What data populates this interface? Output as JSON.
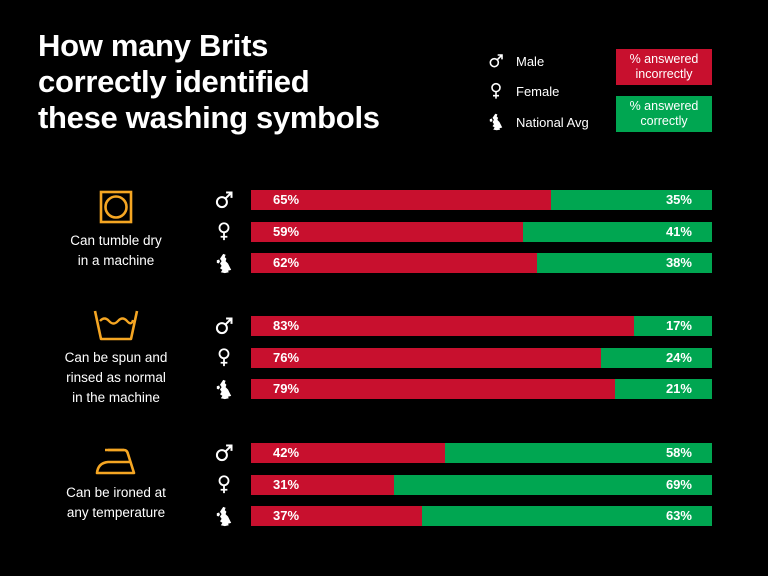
{
  "title_lines": [
    "How many Brits",
    "correctly identified",
    "these washing symbols"
  ],
  "legend": {
    "male": "Male",
    "female": "Female",
    "national": "National Avg",
    "incorrect_lines": [
      "% answered",
      "incorrectly"
    ],
    "correct_lines": [
      "% answered",
      "correctly"
    ]
  },
  "colors": {
    "incorrect": "#c8102e",
    "correct": "#00a651",
    "symbol": "#f5a623",
    "background": "#000000",
    "text": "#ffffff"
  },
  "chart_data": {
    "type": "bar",
    "stacked": true,
    "orientation": "horizontal",
    "title": "How many Brits correctly identified these washing symbols",
    "xlim": [
      0,
      100
    ],
    "series_names": [
      "% answered incorrectly",
      "% answered correctly"
    ],
    "groups": [
      {
        "symbol": "tumble-dry-symbol-icon",
        "label_lines": [
          "Can tumble dry",
          "in a machine"
        ],
        "rows": [
          {
            "gender": "male",
            "incorrect": 65,
            "correct": 35,
            "incorrect_label": "65%",
            "correct_label": "35%"
          },
          {
            "gender": "female",
            "incorrect": 59,
            "correct": 41,
            "incorrect_label": "59%",
            "correct_label": "41%"
          },
          {
            "gender": "national",
            "incorrect": 62,
            "correct": 38,
            "incorrect_label": "62%",
            "correct_label": "38%"
          }
        ]
      },
      {
        "symbol": "wash-tub-symbol-icon",
        "label_lines": [
          "Can be spun and",
          "rinsed as normal",
          "in the machine"
        ],
        "rows": [
          {
            "gender": "male",
            "incorrect": 83,
            "correct": 17,
            "incorrect_label": "83%",
            "correct_label": "17%"
          },
          {
            "gender": "female",
            "incorrect": 76,
            "correct": 24,
            "incorrect_label": "76%",
            "correct_label": "24%"
          },
          {
            "gender": "national",
            "incorrect": 79,
            "correct": 21,
            "incorrect_label": "79%",
            "correct_label": "21%"
          }
        ]
      },
      {
        "symbol": "iron-symbol-icon",
        "label_lines": [
          "Can be ironed at",
          "any temperature"
        ],
        "rows": [
          {
            "gender": "male",
            "incorrect": 42,
            "correct": 58,
            "incorrect_label": "42%",
            "correct_label": "58%"
          },
          {
            "gender": "female",
            "incorrect": 31,
            "correct": 69,
            "incorrect_label": "31%",
            "correct_label": "69%"
          },
          {
            "gender": "national",
            "incorrect": 37,
            "correct": 63,
            "incorrect_label": "37%",
            "correct_label": "63%"
          }
        ]
      }
    ]
  }
}
